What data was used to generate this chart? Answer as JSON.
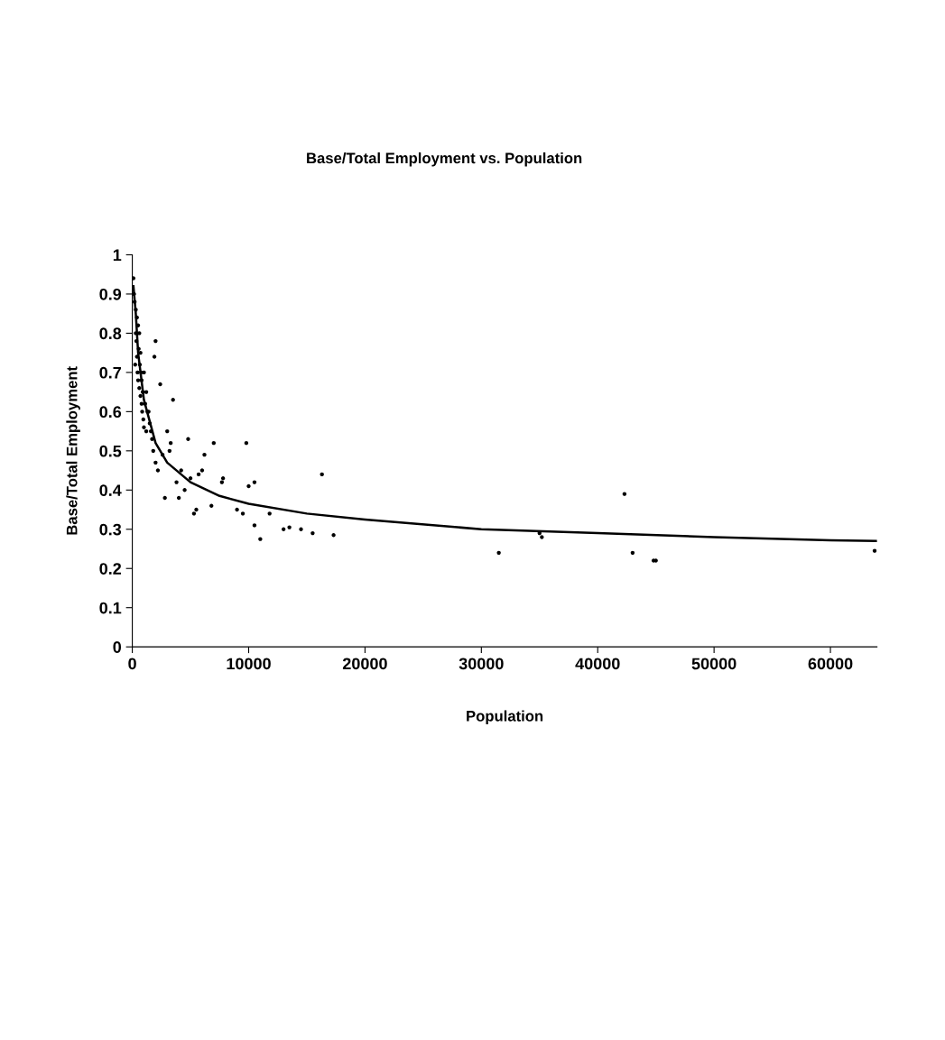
{
  "chart_data": {
    "type": "scatter",
    "title": "Base/Total Employment vs. Population",
    "xlabel": "Population",
    "ylabel": "Base/Total Employment",
    "xlim": [
      0,
      64000
    ],
    "ylim": [
      0,
      1
    ],
    "xticks": [
      0,
      10000,
      20000,
      30000,
      40000,
      50000,
      60000
    ],
    "yticks": [
      0,
      0.1,
      0.2,
      0.3,
      0.4,
      0.5,
      0.6,
      0.7,
      0.8,
      0.9,
      1
    ],
    "grid": false,
    "legend": false,
    "series": [
      {
        "color": "#000000",
        "marker": "circle",
        "x": [
          100,
          150,
          200,
          250,
          300,
          300,
          350,
          400,
          400,
          450,
          500,
          500,
          550,
          600,
          600,
          650,
          700,
          700,
          750,
          800,
          800,
          850,
          900,
          950,
          1000,
          1000,
          1100,
          1200,
          1200,
          1300,
          1400,
          1500,
          1600,
          1700,
          1800,
          1900,
          2000,
          2000,
          2200,
          2400,
          2600,
          2800,
          3000,
          3200,
          3300,
          3500,
          3800,
          4000,
          4200,
          4500,
          4800,
          5000,
          5300,
          5500,
          5700,
          6000,
          6200,
          6800,
          7000,
          7700,
          7800,
          9000,
          9500,
          9800,
          10000,
          10500,
          10500,
          11000,
          11800,
          13000,
          13500,
          14500,
          15500,
          16300,
          17300,
          31500,
          35000,
          35200,
          42300,
          43000,
          44800,
          45000,
          63800
        ],
        "values": [
          0.94,
          0.9,
          0.88,
          0.72,
          0.86,
          0.8,
          0.78,
          0.84,
          0.74,
          0.7,
          0.82,
          0.68,
          0.76,
          0.8,
          0.66,
          0.72,
          0.75,
          0.64,
          0.7,
          0.62,
          0.68,
          0.6,
          0.65,
          0.58,
          0.7,
          0.56,
          0.62,
          0.65,
          0.55,
          0.6,
          0.6,
          0.57,
          0.55,
          0.53,
          0.5,
          0.74,
          0.78,
          0.47,
          0.45,
          0.67,
          0.49,
          0.38,
          0.55,
          0.5,
          0.52,
          0.63,
          0.42,
          0.38,
          0.45,
          0.4,
          0.53,
          0.43,
          0.34,
          0.35,
          0.44,
          0.45,
          0.49,
          0.36,
          0.52,
          0.42,
          0.43,
          0.35,
          0.34,
          0.52,
          0.41,
          0.42,
          0.31,
          0.275,
          0.34,
          0.3,
          0.305,
          0.3,
          0.29,
          0.44,
          0.285,
          0.24,
          0.29,
          0.28,
          0.39,
          0.24,
          0.22,
          0.22,
          0.245
        ]
      },
      {
        "type": "line",
        "color": "#000000",
        "marker": "none",
        "line_style": "solid",
        "x": [
          100,
          300,
          500,
          1000,
          2000,
          3000,
          5000,
          7500,
          10000,
          15000,
          20000,
          30000,
          40000,
          50000,
          60000,
          64000
        ],
        "values": [
          0.92,
          0.85,
          0.75,
          0.63,
          0.52,
          0.47,
          0.42,
          0.385,
          0.365,
          0.34,
          0.325,
          0.3,
          0.29,
          0.28,
          0.272,
          0.27
        ]
      }
    ]
  }
}
